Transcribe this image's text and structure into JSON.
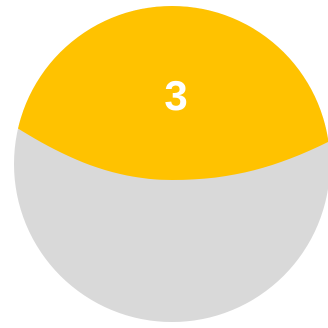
{
  "badge": {
    "number": "3",
    "colors": {
      "fill": "#FFC200",
      "background": "#D9D9D9",
      "text": "#FFFFFF"
    },
    "level": {
      "fill_fraction_of_height": 0.54
    }
  }
}
